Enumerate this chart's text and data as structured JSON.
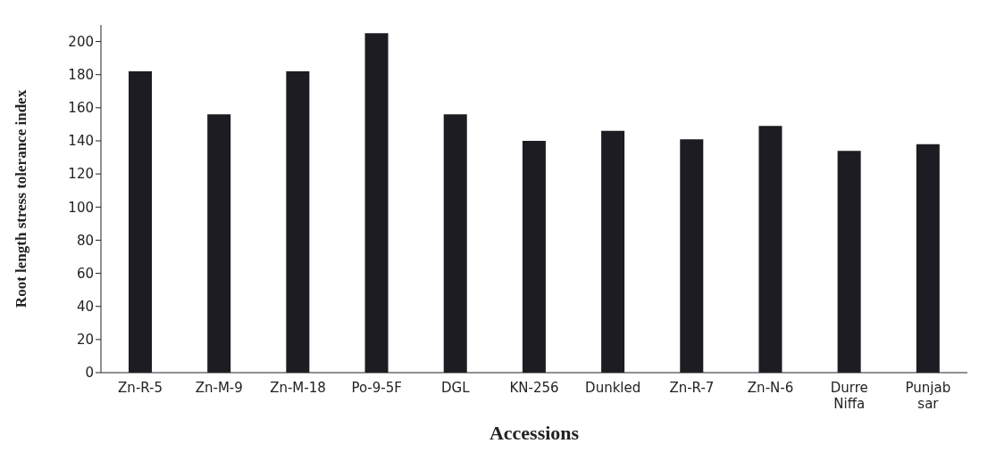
{
  "chart_data": {
    "type": "bar",
    "xlabel": "Accessions",
    "ylabel": "Root length stress tolerance index",
    "categories": [
      "Zn-R-5",
      "Zn-M-9",
      "Zn-M-18",
      "Po-9-5F",
      "DGL",
      "KN-256",
      "Dunkled",
      "Zn-R-7",
      "Zn-N-6",
      "Durre Niffa",
      "Punjab sar"
    ],
    "values": [
      182,
      156,
      182,
      205,
      156,
      140,
      146,
      141,
      149,
      134,
      138
    ],
    "color": "#1c1c22",
    "ylim": [
      0,
      210
    ],
    "yticks": [
      0,
      20,
      40,
      60,
      80,
      100,
      120,
      140,
      160,
      180,
      200
    ],
    "grid": false,
    "legend": false
  }
}
